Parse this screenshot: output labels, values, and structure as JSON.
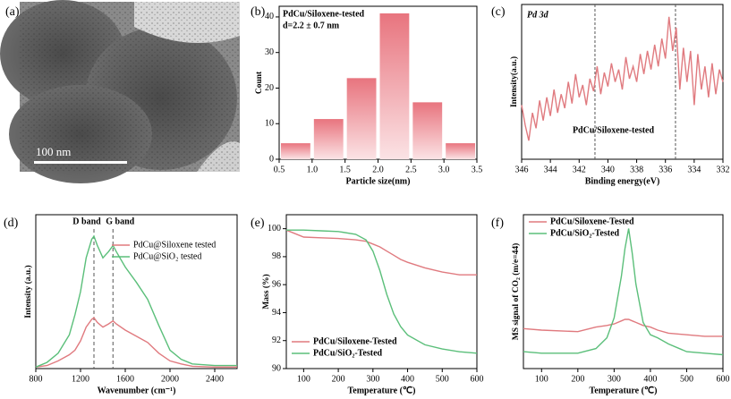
{
  "chart_data": [
    {
      "type": "image",
      "panel_label": "(a)",
      "scale_bar": "100 nm"
    },
    {
      "type": "histogram",
      "panel_label": "(b)",
      "title": "PdCu/Siloxene-tested",
      "subtitle": "d=2.2 ± 0.7 nm",
      "xlabel": "Particle size(nm)",
      "ylabel": "Count",
      "color": "#e8747e",
      "bins": [
        0.5,
        1,
        1.5,
        2,
        2.5,
        3,
        3.5
      ],
      "values": [
        4.5,
        11.3,
        22.8,
        41,
        16,
        4.5
      ],
      "xlim": [
        0.5,
        3.5
      ],
      "ylim": [
        0,
        43
      ],
      "xticks": [
        0.5,
        {
          "value": 1,
          "label": "1.0"
        },
        1.5,
        {
          "value": 2,
          "label": "2.0"
        },
        2.5,
        {
          "value": 3,
          "label": "3.0"
        },
        3.5
      ],
      "yticks": [
        0,
        10,
        20,
        30,
        40
      ]
    },
    {
      "type": "line",
      "panel_label": "(c)",
      "title": "Pd 3d",
      "annotation": "PdCu/Siloxene-tested",
      "xlabel": "Binding energy(eV)",
      "ylabel": "Intensity(a.u.)",
      "xlim": [
        346,
        332
      ],
      "ylim": [
        0,
        1
      ],
      "xticks": [
        346,
        344,
        342,
        340,
        338,
        336,
        334,
        332
      ],
      "vlines": [
        340.9,
        335.3
      ],
      "x": [
        346,
        345.75,
        345.5,
        345.25,
        345,
        344.75,
        344.5,
        344.25,
        344,
        343.75,
        343.5,
        343.25,
        343,
        342.75,
        342.5,
        342.25,
        342,
        341.75,
        341.5,
        341.25,
        341,
        340.75,
        340.5,
        340.25,
        340,
        339.75,
        339.5,
        339.25,
        339,
        338.75,
        338.5,
        338.25,
        338,
        337.75,
        337.5,
        337.25,
        337,
        336.75,
        336.5,
        336.25,
        336,
        335.75,
        335.5,
        335.25,
        335,
        334.75,
        334.5,
        334.25,
        334,
        333.75,
        333.5,
        333.25,
        333,
        332.75,
        332.5,
        332.25,
        332
      ],
      "series": [
        {
          "color": "#e07a7f",
          "values": [
            0.35,
            0.22,
            0.12,
            0.3,
            0.2,
            0.38,
            0.25,
            0.4,
            0.28,
            0.45,
            0.3,
            0.42,
            0.33,
            0.5,
            0.36,
            0.55,
            0.4,
            0.48,
            0.35,
            0.52,
            0.44,
            0.6,
            0.42,
            0.56,
            0.47,
            0.62,
            0.5,
            0.58,
            0.45,
            0.66,
            0.52,
            0.6,
            0.5,
            0.68,
            0.55,
            0.7,
            0.58,
            0.74,
            0.6,
            0.78,
            0.65,
            0.92,
            0.7,
            0.85,
            0.45,
            0.72,
            0.5,
            0.7,
            0.35,
            0.68,
            0.45,
            0.6,
            0.4,
            0.62,
            0.42,
            0.58,
            0.5
          ]
        }
      ]
    },
    {
      "type": "line",
      "panel_label": "(d)",
      "xlabel": "Wavenumber (cm⁻¹)",
      "ylabel": "Intensity (a.u.)",
      "legend": "upper right",
      "xlim": [
        800,
        2600
      ],
      "ylim": [
        0,
        1
      ],
      "xticks": [
        800,
        1200,
        1600,
        2000,
        2400
      ],
      "vline_labels": [
        {
          "text": "D band",
          "x": 1320
        },
        {
          "text": "G band",
          "x": 1490
        }
      ],
      "x": [
        800,
        900,
        1000,
        1100,
        1150,
        1200,
        1250,
        1300,
        1320,
        1350,
        1400,
        1450,
        1490,
        1520,
        1600,
        1700,
        1800,
        1900,
        2000,
        2100,
        2200,
        2400,
        2600
      ],
      "series": [
        {
          "name": "PdCu@Siloxene tested",
          "color": "#e07a7f",
          "values": [
            0.01,
            0.02,
            0.05,
            0.09,
            0.12,
            0.18,
            0.27,
            0.32,
            0.33,
            0.3,
            0.27,
            0.29,
            0.31,
            0.29,
            0.25,
            0.21,
            0.17,
            0.1,
            0.05,
            0.03,
            0.015,
            0.01,
            0.01
          ]
        },
        {
          "name": "PdCu@SiO₂ tested",
          "color": "#5bbf7a",
          "values": [
            0.01,
            0.04,
            0.1,
            0.22,
            0.35,
            0.5,
            0.72,
            0.84,
            0.86,
            0.8,
            0.72,
            0.76,
            0.8,
            0.76,
            0.66,
            0.56,
            0.45,
            0.28,
            0.12,
            0.06,
            0.03,
            0.02,
            0.02
          ]
        }
      ]
    },
    {
      "type": "line",
      "panel_label": "(e)",
      "xlabel": "Temperature (℃)",
      "ylabel": "Mass (%)",
      "legend": "lower left",
      "xlim": [
        50,
        600
      ],
      "ylim": [
        90,
        101
      ],
      "xticks": [
        100,
        200,
        300,
        400,
        500,
        600
      ],
      "yticks": [
        90,
        92,
        94,
        96,
        98,
        100
      ],
      "x": [
        50,
        100,
        150,
        200,
        250,
        280,
        300,
        320,
        340,
        360,
        380,
        400,
        450,
        500,
        550,
        600
      ],
      "series": [
        {
          "name": "PdCu/Siloxene-Tested",
          "color": "#e07a7f",
          "values": [
            99.9,
            99.4,
            99.35,
            99.3,
            99.2,
            99.1,
            98.9,
            98.7,
            98.4,
            98.1,
            97.8,
            97.6,
            97.2,
            96.9,
            96.7,
            96.7
          ]
        },
        {
          "name": "PdCu/SiO₂-Tested",
          "color": "#5bbf7a",
          "values": [
            99.9,
            99.9,
            99.85,
            99.8,
            99.6,
            99.2,
            98.4,
            97.0,
            95.3,
            93.9,
            93.0,
            92.4,
            91.7,
            91.4,
            91.2,
            91.1
          ]
        }
      ]
    },
    {
      "type": "line",
      "panel_label": "(f)",
      "xlabel": "Temperature (℃)",
      "ylabel": "MS signal of CO₂ (m/e=44)",
      "legend": "upper left",
      "xlim": [
        50,
        600
      ],
      "ylim": [
        0,
        1
      ],
      "xticks": [
        100,
        200,
        300,
        400,
        500,
        600
      ],
      "x": [
        50,
        100,
        200,
        250,
        280,
        300,
        320,
        330,
        340,
        350,
        360,
        380,
        400,
        420,
        450,
        500,
        550,
        600
      ],
      "series": [
        {
          "name": "PdCu/Siloxene-Tested",
          "color": "#e07a7f",
          "values": [
            0.26,
            0.25,
            0.24,
            0.27,
            0.28,
            0.29,
            0.31,
            0.32,
            0.32,
            0.31,
            0.3,
            0.28,
            0.27,
            0.25,
            0.23,
            0.22,
            0.21,
            0.21
          ]
        },
        {
          "name": "PdCu/SiO₂-Tested",
          "color": "#5bbf7a",
          "values": [
            0.11,
            0.1,
            0.1,
            0.13,
            0.2,
            0.33,
            0.6,
            0.78,
            0.91,
            0.75,
            0.55,
            0.3,
            0.22,
            0.2,
            0.16,
            0.11,
            0.1,
            0.09
          ]
        }
      ]
    }
  ]
}
